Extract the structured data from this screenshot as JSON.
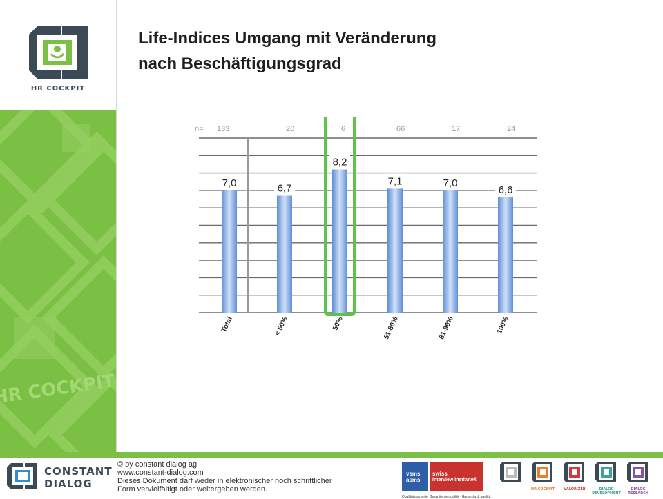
{
  "title_line1": "Life-Indices Umgang mit Veränderung",
  "title_line2": "nach Beschäftigungsgrad",
  "logo": {
    "label": "HR COCKPIT"
  },
  "sidebar_watermark": "HR COCKPIT",
  "colors": {
    "brand_green": "#7cbf45",
    "brand_dark": "#3b4a55",
    "bar": "#8fb5e6",
    "highlight": "#5fc24a"
  },
  "chart_data": {
    "type": "bar",
    "title": "",
    "categories": [
      "Total",
      "< 50%",
      "50%",
      "51-80%",
      "81-99%",
      "100%"
    ],
    "values": [
      7.0,
      6.7,
      8.2,
      7.1,
      7.0,
      6.6
    ],
    "value_labels": [
      "7,0",
      "6,7",
      "8,2",
      "7,1",
      "7,0",
      "6,6"
    ],
    "n_prefix": "n=",
    "n_values": [
      "133",
      "20",
      "6",
      "66",
      "17",
      "24"
    ],
    "ylim": [
      0,
      10
    ],
    "grid": true,
    "highlight_index": 2
  },
  "footer": {
    "company_line1": "CONSTANT",
    "company_line2": "DIALOG",
    "copyright": "© by constant dialog ag",
    "website": "www.constant-dialog.com",
    "notice_line1": "Dieses Dokument darf weder in elektronischer noch schriftlicher",
    "notice_line2": "Form vervielfältigt oder weitergeben werden.",
    "badge1_line1": "vsms",
    "badge1_line2": "asms",
    "badge1_caption": "Qualitätsgarantie",
    "badge2_line1": "swiss",
    "badge2_line2": "interview institute®",
    "badge2_caption": "Garantie de qualité · Garanzia di qualità",
    "products": [
      "",
      "HR COCKPIT",
      "VALORIZER",
      "DIALOG DEVELOPMENT",
      "DIALOG RESEARCH"
    ]
  }
}
